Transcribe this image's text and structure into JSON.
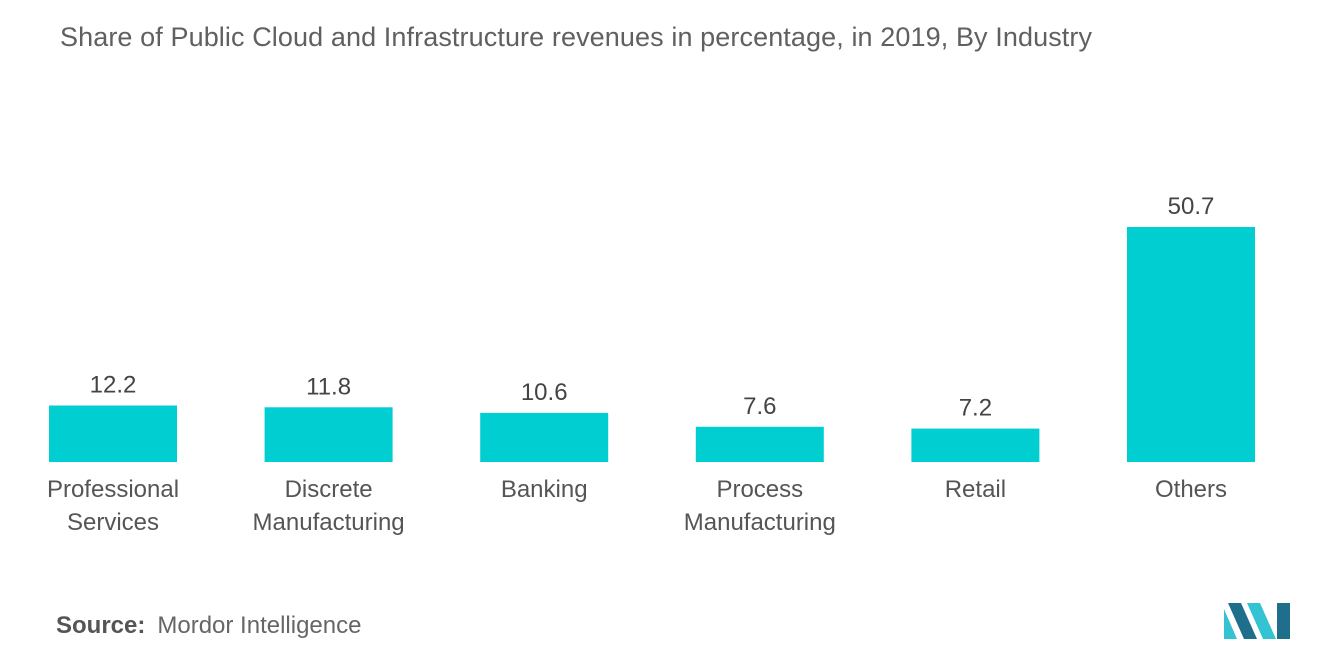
{
  "chart_data": {
    "type": "bar",
    "title": "Share of Public Cloud and Infrastructure revenues in percentage, in 2019, By Industry",
    "categories": [
      [
        "Professional",
        "Services"
      ],
      [
        "Discrete",
        "Manufacturing"
      ],
      [
        "Banking"
      ],
      [
        "Process",
        "Manufacturing"
      ],
      [
        "Retail"
      ],
      [
        "Others"
      ]
    ],
    "values": [
      12.2,
      11.8,
      10.6,
      7.6,
      7.2,
      50.7
    ],
    "ylim": [
      0,
      50.7
    ],
    "grid": false,
    "bar_color": "#00CED1"
  },
  "source": {
    "key": "Source:",
    "value": "Mordor Intelligence"
  },
  "logo": {
    "icon": "mordor-intelligence-logo-icon",
    "colors": [
      "#1F6E8C",
      "#33C3D3"
    ]
  }
}
